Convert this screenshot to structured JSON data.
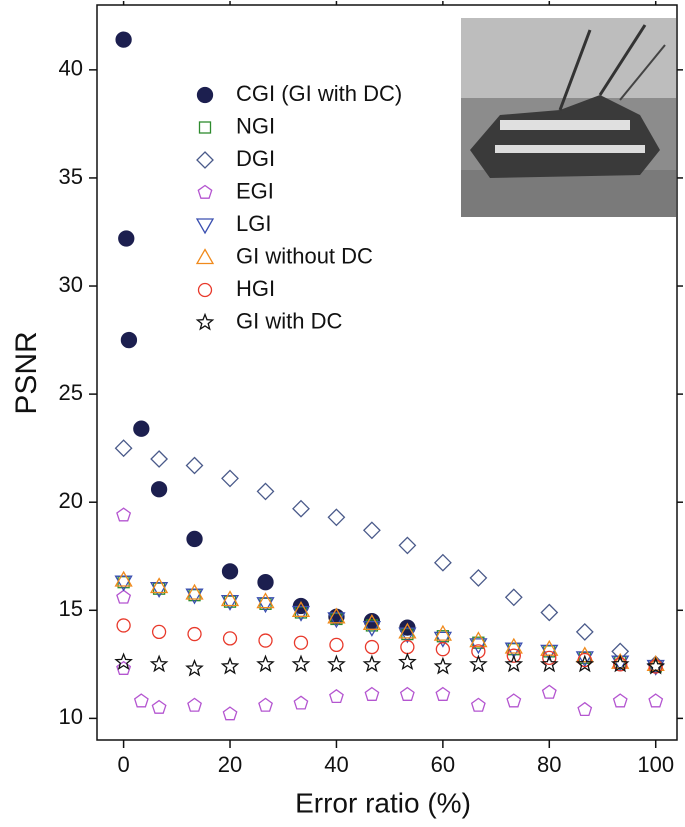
{
  "chart_data": {
    "type": "scatter",
    "xlabel": "Error ratio (%)",
    "ylabel": "PSNR",
    "xlim": [
      -5,
      104
    ],
    "ylim": [
      9,
      43
    ],
    "xticks": [
      0,
      20,
      40,
      60,
      80,
      100
    ],
    "yticks": [
      10,
      15,
      20,
      25,
      30,
      35,
      40
    ],
    "series": [
      {
        "name": "CGI (GI with DC)",
        "color": "#1c1f4f",
        "marker": "filled-circle",
        "x": [
          0,
          0.5,
          1,
          3.33,
          6.67,
          13.33,
          20,
          26.67,
          33.33,
          40,
          46.67,
          53.33
        ],
        "values": [
          41.4,
          32.2,
          27.5,
          23.4,
          20.6,
          18.3,
          16.8,
          16.3,
          15.2,
          14.7,
          14.5,
          14.2
        ]
      },
      {
        "name": "NGI",
        "color": "#2e8b2e",
        "marker": "square",
        "x": [
          0,
          6.67,
          13.33,
          20,
          26.67,
          33.33,
          40,
          46.67,
          53.33,
          60,
          66.67,
          73.33,
          80,
          86.67,
          93.33,
          100
        ],
        "values": [
          16.3,
          16.0,
          15.7,
          15.4,
          15.3,
          14.9,
          14.6,
          14.3,
          13.9,
          13.8,
          13.5,
          13.2,
          13.1,
          12.8,
          12.6,
          12.4
        ]
      },
      {
        "name": "DGI",
        "color": "#4a5a8a",
        "marker": "diamond",
        "x": [
          0,
          6.67,
          13.33,
          20,
          26.67,
          33.33,
          40,
          46.67,
          53.33,
          60,
          66.67,
          73.33,
          80,
          86.67,
          93.33,
          100
        ],
        "values": [
          22.5,
          22.0,
          21.7,
          21.1,
          20.5,
          19.7,
          19.3,
          18.7,
          18.0,
          17.2,
          16.5,
          15.6,
          14.9,
          14.0,
          13.1,
          12.5
        ]
      },
      {
        "name": "EGI",
        "color": "#b455d0",
        "marker": "pentagon",
        "x": [
          0,
          0,
          0,
          3.33,
          6.67,
          13.33,
          20,
          26.67,
          33.33,
          40,
          46.67,
          53.33,
          60,
          66.67,
          73.33,
          80,
          86.67,
          93.33,
          100
        ],
        "values": [
          19.4,
          15.6,
          12.3,
          10.8,
          10.5,
          10.6,
          10.2,
          10.6,
          10.7,
          11.0,
          11.1,
          11.1,
          11.1,
          10.6,
          10.8,
          11.2,
          10.4,
          10.8,
          10.8
        ]
      },
      {
        "name": "LGI",
        "color": "#3a4fb0",
        "marker": "triangle-down",
        "x": [
          0,
          6.67,
          13.33,
          20,
          26.67,
          33.33,
          40,
          46.67,
          53.33,
          60,
          66.67,
          73.33,
          80,
          86.67,
          93.33,
          100
        ],
        "values": [
          16.3,
          16.0,
          15.7,
          15.4,
          15.3,
          14.9,
          14.6,
          14.2,
          13.9,
          13.7,
          13.4,
          13.2,
          13.1,
          12.8,
          12.6,
          12.4
        ]
      },
      {
        "name": "GI without DC",
        "color": "#f08a1c",
        "marker": "triangle-up",
        "x": [
          0,
          6.67,
          13.33,
          20,
          26.67,
          33.33,
          40,
          46.67,
          53.33,
          60,
          66.67,
          73.33,
          80,
          86.67,
          93.33,
          100
        ],
        "values": [
          16.4,
          16.1,
          15.8,
          15.5,
          15.4,
          15.0,
          14.7,
          14.4,
          14.0,
          13.9,
          13.6,
          13.3,
          13.2,
          12.9,
          12.6,
          12.5
        ]
      },
      {
        "name": "HGI",
        "color": "#e8392b",
        "marker": "circle",
        "x": [
          0,
          6.67,
          13.33,
          20,
          26.67,
          33.33,
          40,
          46.67,
          53.33,
          60,
          66.67,
          73.33,
          80,
          86.67,
          93.33,
          100
        ],
        "values": [
          14.3,
          14.0,
          13.9,
          13.7,
          13.6,
          13.5,
          13.4,
          13.3,
          13.3,
          13.2,
          13.1,
          12.9,
          12.8,
          12.7,
          12.5,
          12.4
        ]
      },
      {
        "name": "GI with DC",
        "color": "#111111",
        "marker": "star",
        "x": [
          0,
          6.67,
          13.33,
          20,
          26.67,
          33.33,
          40,
          46.67,
          53.33,
          60,
          66.67,
          73.33,
          80,
          86.67,
          93.33,
          100
        ],
        "values": [
          12.6,
          12.5,
          12.3,
          12.4,
          12.5,
          12.5,
          12.5,
          12.5,
          12.6,
          12.4,
          12.5,
          12.5,
          12.5,
          12.5,
          12.5,
          12.4
        ]
      }
    ]
  }
}
